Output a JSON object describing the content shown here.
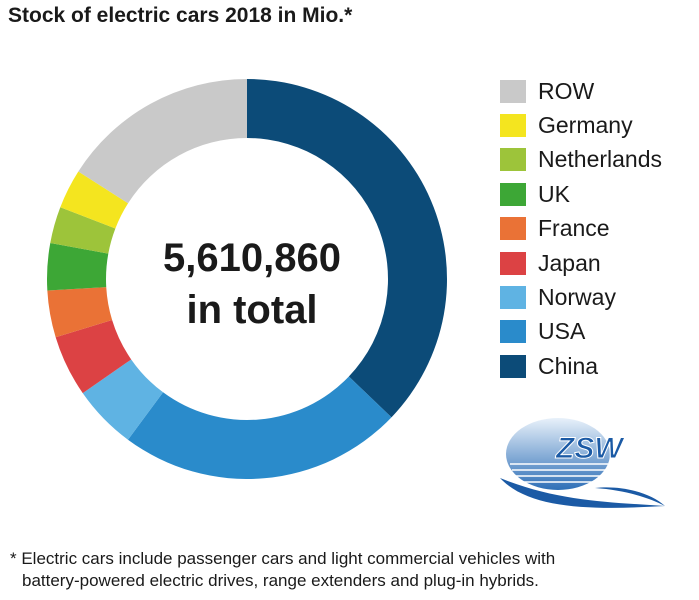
{
  "chart_data": {
    "type": "pie",
    "title": "Stock of electric cars 2018 in Mio.*",
    "center_value": "5,610,860",
    "center_label": "in total",
    "legend_position": "right",
    "slices": [
      {
        "label": "China",
        "value": 0.4087,
        "color": "#0c4b78"
      },
      {
        "label": "USA",
        "value": 0.2529,
        "color": "#2a8bcb"
      },
      {
        "label": "Norway",
        "value": 0.0571,
        "color": "#5fb3e3"
      },
      {
        "label": "Japan",
        "value": 0.0546,
        "color": "#dc4244"
      },
      {
        "label": "France",
        "value": 0.0416,
        "color": "#ea7236"
      },
      {
        "label": "UK",
        "value": 0.0418,
        "color": "#3da736"
      },
      {
        "label": "Netherlands",
        "value": 0.0325,
        "color": "#9dc43a"
      },
      {
        "label": "Germany",
        "value": 0.0351,
        "color": "#f4e51f"
      },
      {
        "label": "ROW",
        "value": 0.1757,
        "color": "#c9c9c9"
      }
    ],
    "legend_order": [
      "ROW",
      "Germany",
      "Netherlands",
      "UK",
      "France",
      "Japan",
      "Norway",
      "USA",
      "China"
    ]
  },
  "logo": {
    "text": "ZSW"
  },
  "footnote": {
    "line1": "* Electric cars include passenger cars and light commercial vehicles with",
    "line2": "battery-powered electric drives, range extenders and plug-in hybrids."
  }
}
